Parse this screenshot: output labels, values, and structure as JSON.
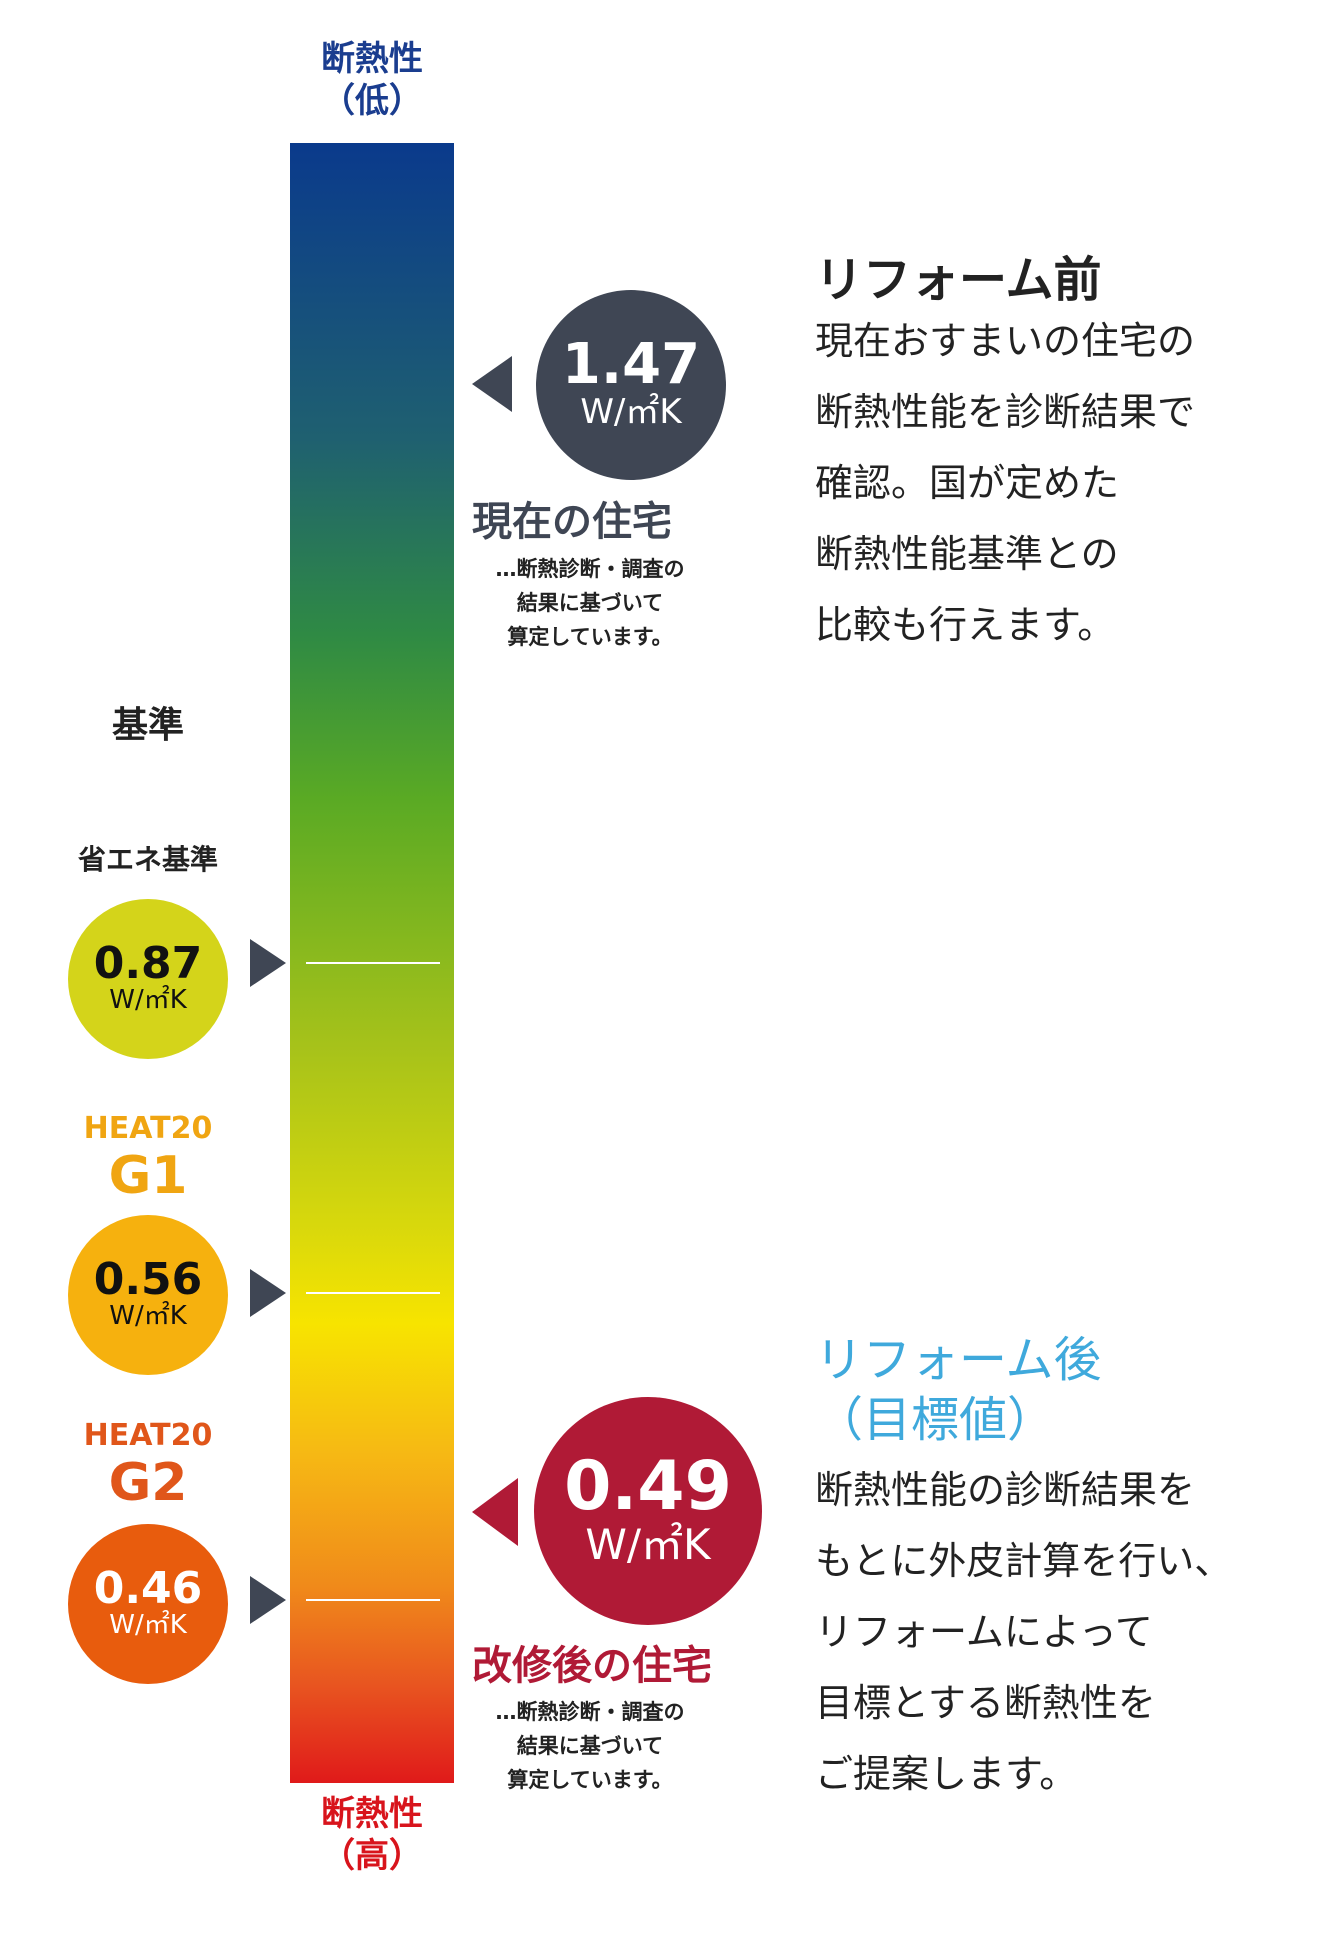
{
  "scale": {
    "top_label_line1": "断熱性",
    "top_label_line2": "（低）",
    "bottom_label_line1": "断熱性",
    "bottom_label_line2": "（高）",
    "top_color": "#0a3a8c",
    "bottom_color": "#e01a1a"
  },
  "standards": {
    "heading": "基準",
    "energy_saving": {
      "label": "省エネ基準",
      "value": "0.87",
      "unit": "W/㎡K",
      "color": "#d4d41a"
    },
    "g1": {
      "label_top": "HEAT20",
      "label_main": "G1",
      "value": "0.56",
      "unit": "W/㎡K",
      "color": "#f6b10e"
    },
    "g2": {
      "label_top": "HEAT20",
      "label_main": "G2",
      "value": "0.46",
      "unit": "W/㎡K",
      "color": "#e85c0d"
    }
  },
  "current": {
    "value": "1.47",
    "unit": "W/㎡K",
    "title": "現在の住宅",
    "note_line1": "…断熱診断・調査の",
    "note_line2": "結果に基づいて",
    "note_line3": "算定しています。",
    "color": "#3f4654"
  },
  "renovated": {
    "value": "0.49",
    "unit": "W/㎡K",
    "title": "改修後の住宅",
    "note_line1": "…断熱診断・調査の",
    "note_line2": "結果に基づいて",
    "note_line3": "算定しています。",
    "color": "#b01a36"
  },
  "before": {
    "heading": "リフォーム前",
    "lines": [
      "現在おすまいの住宅の",
      "断熱性能を診断結果で",
      "確認。国が定めた",
      "断熱性能基準との",
      "比較も行えます。"
    ]
  },
  "after": {
    "heading_line1": "リフォーム後",
    "heading_line2": "（目標値）",
    "heading_color": "#3fa9dc",
    "lines": [
      "断熱性能の診断結果を",
      "もとに外皮計算を行い、",
      "リフォームによって",
      "目標とする断熱性を",
      "ご提案します。"
    ]
  }
}
